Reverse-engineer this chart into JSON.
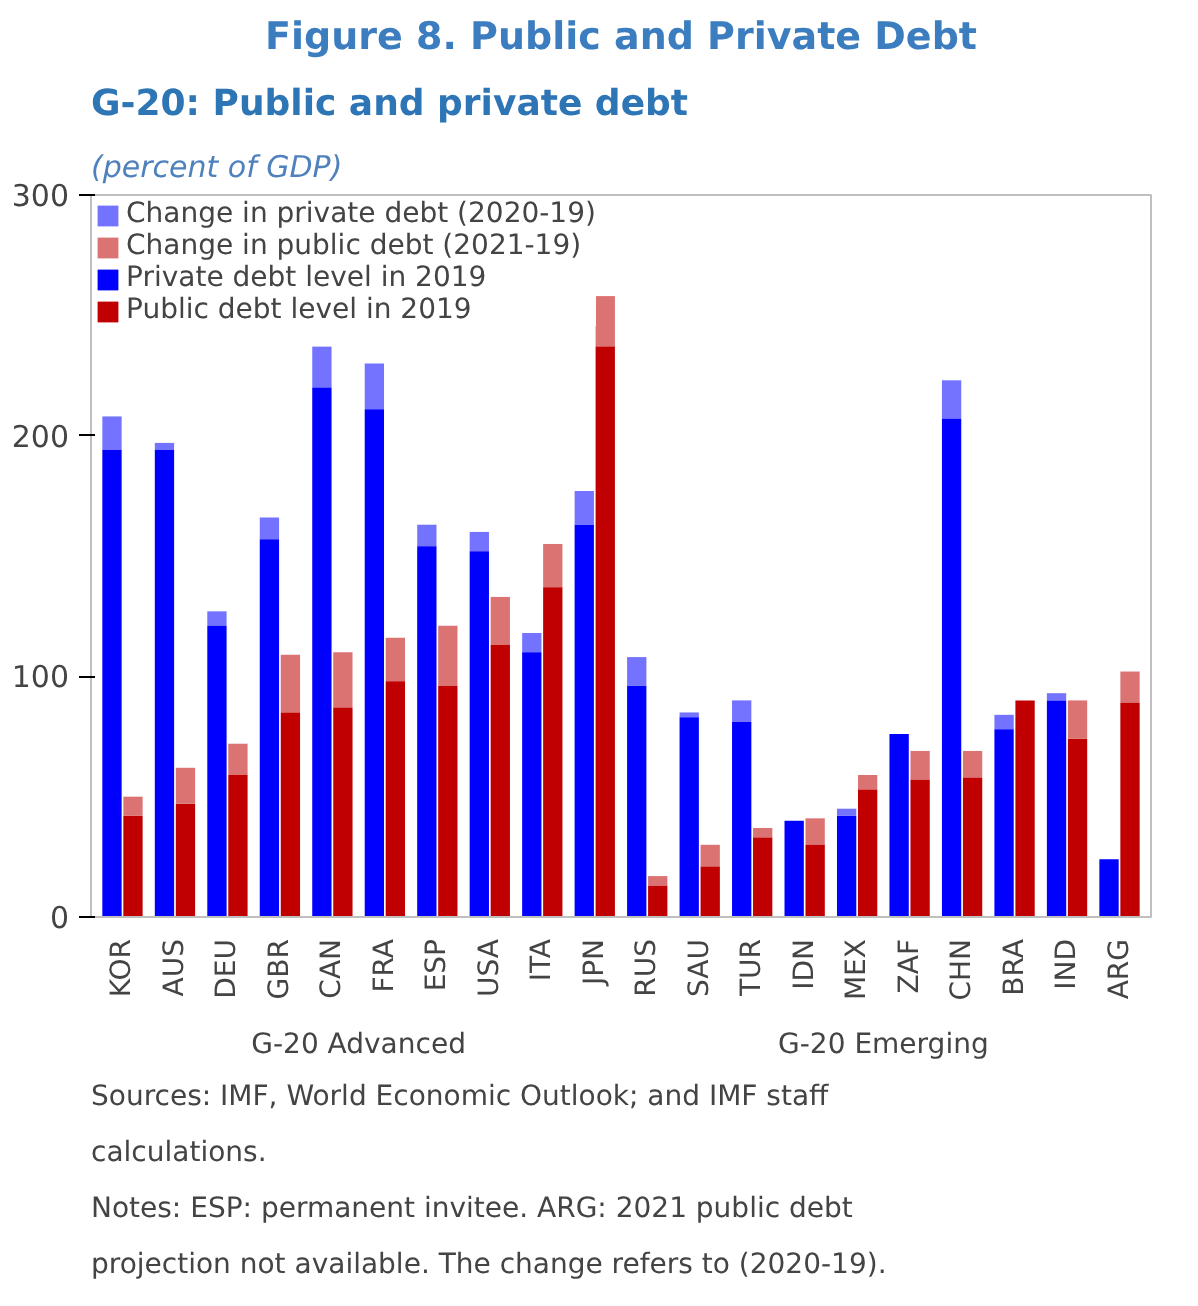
{
  "chart_data": {
    "type": "bar",
    "title": "Figure 8. Public and Private Debt",
    "subtitle": "G-20: Public and private debt",
    "ylabel": "(percent of GDP)",
    "categories": [
      "KOR",
      "AUS",
      "DEU",
      "GBR",
      "CAN",
      "FRA",
      "ESP",
      "USA",
      "ITA",
      "JPN",
      "RUS",
      "SAU",
      "TUR",
      "IDN",
      "MEX",
      "ZAF",
      "CHN",
      "BRA",
      "IND",
      "ARG"
    ],
    "ylim": [
      0,
      300
    ],
    "yticks": [
      0,
      100,
      200,
      300
    ],
    "legend": "top",
    "series": [
      {
        "name": "Private debt level in 2019",
        "color": "#0000ff",
        "values": [
          194,
          194,
          121,
          157,
          220,
          211,
          154,
          152,
          110,
          163,
          96,
          83,
          81,
          40,
          42,
          76,
          207,
          78,
          90,
          24
        ]
      },
      {
        "name": "Change in private debt (2020-19)",
        "color": "#0000ff",
        "base": [
          194,
          194,
          121,
          157,
          220,
          211,
          154,
          152,
          110,
          163,
          96,
          83,
          81,
          null,
          42,
          null,
          207,
          78,
          90,
          null
        ],
        "values": [
          14,
          3,
          6,
          9,
          17,
          19,
          9,
          8,
          8,
          14,
          12,
          2,
          9,
          null,
          3,
          null,
          16,
          6,
          3,
          null
        ]
      },
      {
        "name": "Public debt level in 2019",
        "color": "#c00000",
        "values": [
          42,
          47,
          59,
          85,
          87,
          98,
          96,
          113,
          137,
          237,
          13,
          21,
          33,
          30,
          53,
          57,
          58,
          90,
          74,
          89
        ]
      },
      {
        "name": "Change in public debt (2021-19)",
        "color": "#c00000",
        "base": [
          42,
          47,
          59,
          85,
          87,
          98,
          96,
          113,
          137,
          237,
          13,
          21,
          33,
          30,
          53,
          57,
          58,
          null,
          74,
          89
        ],
        "values": [
          8,
          15,
          13,
          24,
          23,
          18,
          25,
          20,
          18,
          21,
          4,
          9,
          4,
          11,
          6,
          12,
          11,
          null,
          16,
          13
        ]
      }
    ],
    "annotations": [
      "G-20 Advanced",
      "G-20 Emerging",
      "Sources: IMF, World Economic Outlook; and IMF staff calculations.",
      "Notes: ESP: permanent invitee. ARG: 2021 public debt projection not available. The change refers to (2020-19)."
    ]
  }
}
